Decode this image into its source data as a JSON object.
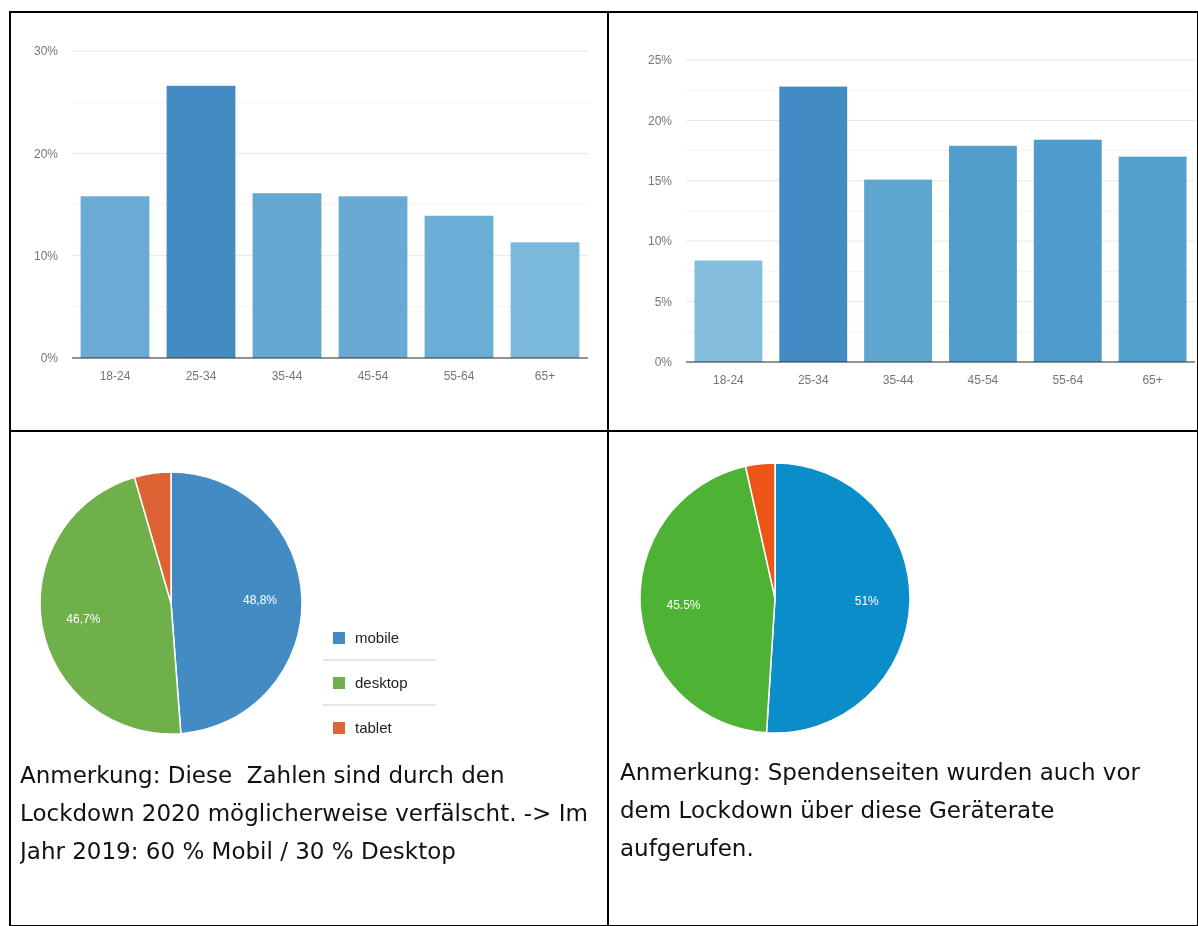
{
  "chart_data": [
    {
      "type": "bar",
      "categories": [
        "18-24",
        "25-34",
        "35-44",
        "45-54",
        "55-64",
        "65+"
      ],
      "values": [
        15.8,
        26.6,
        16.1,
        15.8,
        13.9,
        11.3
      ],
      "colors": [
        "#6aabd4",
        "#428bc3",
        "#64a8d2",
        "#68aad4",
        "#6aaed6",
        "#7ab8dc"
      ],
      "ylim": [
        0,
        30
      ],
      "yticks": [
        {
          "value": 0,
          "label": "0%"
        },
        {
          "value": 5,
          "label": null
        },
        {
          "value": 10,
          "label": "10%"
        },
        {
          "value": 15,
          "label": null
        },
        {
          "value": 20,
          "label": "20%"
        },
        {
          "value": 25,
          "label": null
        },
        {
          "value": 30,
          "label": "30%"
        }
      ],
      "grid": "y"
    },
    {
      "type": "bar",
      "categories": [
        "18-24",
        "25-34",
        "35-44",
        "45-54",
        "55-64",
        "65+"
      ],
      "values": [
        8.4,
        22.8,
        15.1,
        17.9,
        18.4,
        17.0
      ],
      "colors": [
        "#82bddd",
        "#428bc3",
        "#5ea5d0",
        "#519ecc",
        "#4f9bcb",
        "#52a0cc"
      ],
      "ylim": [
        0,
        25
      ],
      "yticks": [
        {
          "value": 0,
          "label": "0%"
        },
        {
          "value": 2.5,
          "label": null
        },
        {
          "value": 5,
          "label": "5%"
        },
        {
          "value": 7.5,
          "label": null
        },
        {
          "value": 10,
          "label": "10%"
        },
        {
          "value": 12.5,
          "label": null
        },
        {
          "value": 15,
          "label": "15%"
        },
        {
          "value": 17.5,
          "label": null
        },
        {
          "value": 20,
          "label": "20%"
        },
        {
          "value": 22.5,
          "label": null
        },
        {
          "value": 25,
          "label": "25%"
        }
      ],
      "grid": "y"
    },
    {
      "type": "pie",
      "categories": [
        "mobile",
        "desktop",
        "tablet"
      ],
      "values": [
        48.8,
        46.7,
        4.5
      ],
      "colors": [
        "#428bc3",
        "#6fb04a",
        "#dd6234"
      ],
      "value_labels": [
        "48,8%",
        "46,7%",
        null
      ],
      "legend": "right",
      "annotations": [
        "Anmerkung: Diese  Zahlen sind durch den Lockdown 2020 möglicherweise verfälscht. -> Im Jahr 2019: 60 % Mobil / 30 % Desktop"
      ]
    },
    {
      "type": "pie",
      "categories": [
        null,
        null,
        null
      ],
      "values": [
        51,
        45.5,
        3.5
      ],
      "colors": [
        "#0a8dc8",
        "#4eb234",
        "#ed5517"
      ],
      "value_labels": [
        "51%",
        "45.5%",
        null
      ],
      "annotations": [
        "Anmerkung: Spendenseiten wurden auch vor dem Lockdown über diese Geräterate aufgerufen."
      ]
    }
  ]
}
